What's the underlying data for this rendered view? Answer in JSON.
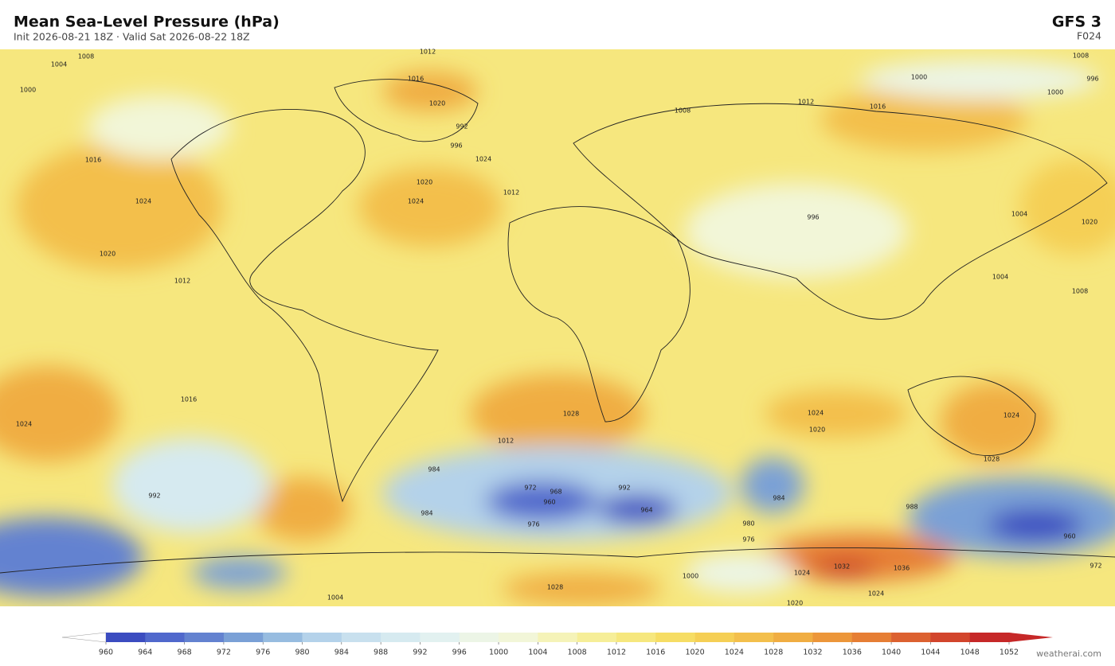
{
  "header": {
    "title": "Mean Sea-Level Pressure  (hPa)",
    "subtitle": "Init 2026-08-21 18Z   ·   Valid Sat 2026-08-22 18Z",
    "model": "GFS  3",
    "forecast_hour": "F024"
  },
  "map": {
    "contour_labels": [
      "1008",
      "1012",
      "1004",
      "1000",
      "1016",
      "1020",
      "992",
      "996",
      "1008",
      "1024",
      "1024",
      "1020",
      "1012",
      "1024",
      "1016",
      "1020",
      "1012",
      "1004",
      "1008",
      "996",
      "1004",
      "1020",
      "1024",
      "1028",
      "1024",
      "1016",
      "1028",
      "1020",
      "1012",
      "984",
      "972",
      "968",
      "960",
      "976",
      "984",
      "992",
      "964",
      "980",
      "976",
      "1028",
      "1020",
      "1024",
      "1036",
      "1032",
      "1024",
      "1000",
      "1024",
      "1004",
      "984",
      "960",
      "972",
      "988",
      "992",
      "1008",
      "1012",
      "1016",
      "1000",
      "1000",
      "996"
    ]
  },
  "colorbar": {
    "ticks": [
      960,
      964,
      968,
      972,
      976,
      980,
      984,
      988,
      992,
      996,
      1000,
      1004,
      1008,
      1012,
      1016,
      1020,
      1024,
      1028,
      1032,
      1036,
      1040,
      1044,
      1048,
      1052
    ],
    "colors": [
      "#3b4cc0",
      "#5068cc",
      "#6382d0",
      "#7aa0d6",
      "#97bce0",
      "#b4d2ea",
      "#c8e0ee",
      "#d6eaf0",
      "#e2f1f0",
      "#ecf5e6",
      "#f2f6d8",
      "#f5f3b8",
      "#f6ee98",
      "#f6e77e",
      "#f6dd64",
      "#f5cf55",
      "#f3bf4c",
      "#f0ad42",
      "#ec963a",
      "#e67e34",
      "#dc6130",
      "#d2452c",
      "#c62828"
    ],
    "under_color": "#ffffff",
    "over_color": "#c62828"
  },
  "footer": {
    "credit": "weatherai.com"
  }
}
